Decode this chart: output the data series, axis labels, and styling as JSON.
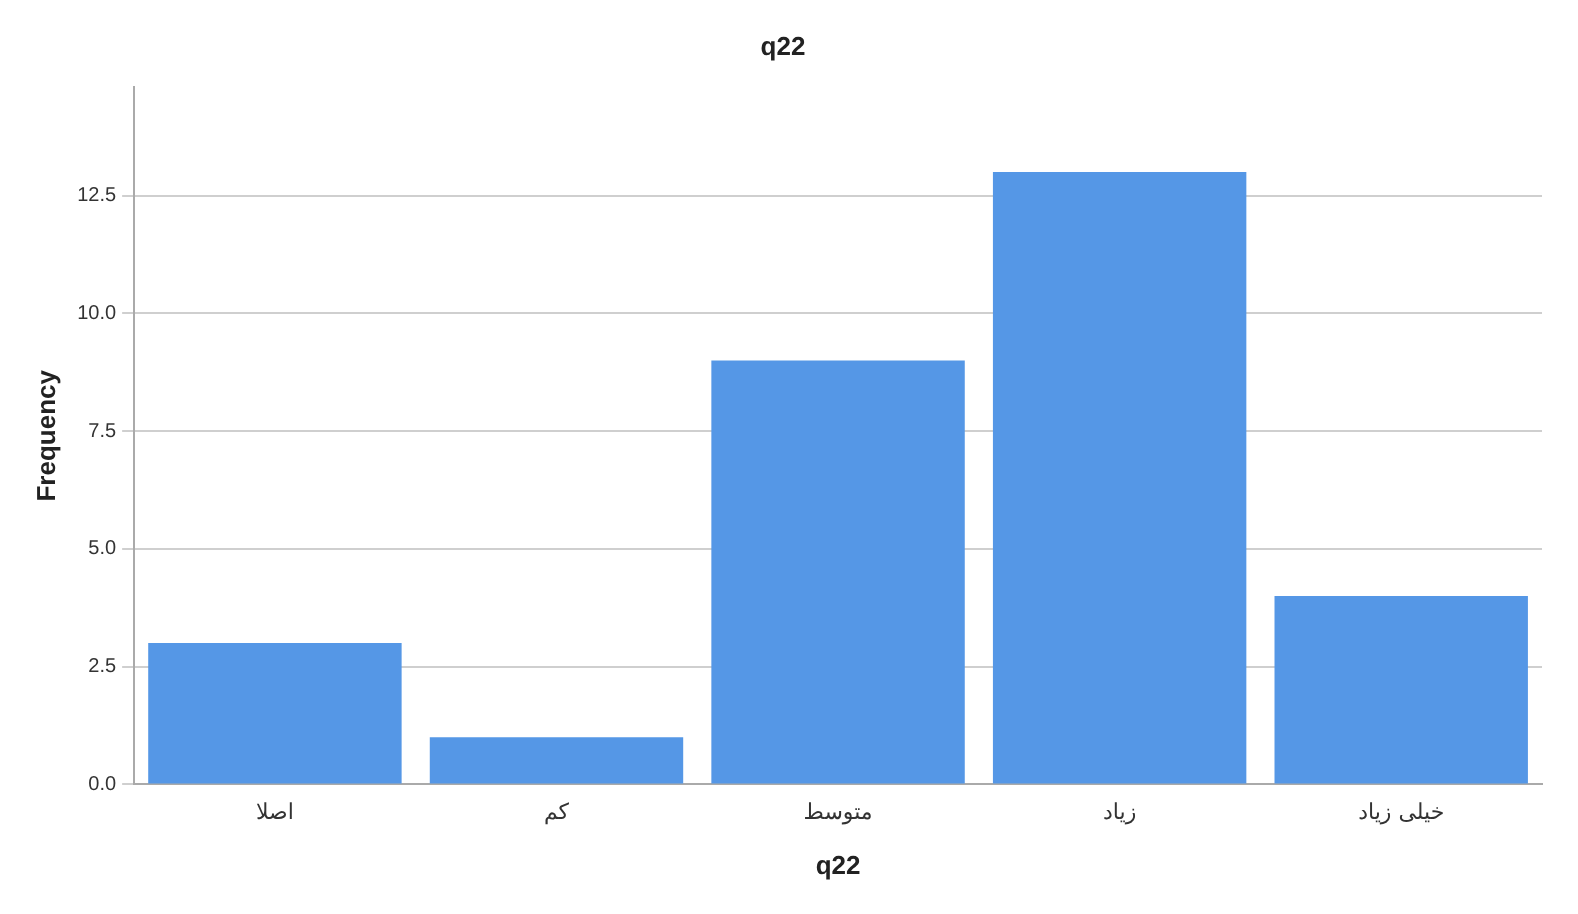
{
  "chart_data": {
    "type": "bar",
    "title": "q22",
    "xlabel": "q22",
    "ylabel": "Frequency",
    "categories": [
      "اصلا",
      "کم",
      "متوسط",
      "زیاد",
      "خیلی زیاد"
    ],
    "values": [
      3,
      1,
      9,
      13,
      4
    ],
    "color": "#5597e6",
    "ylim": [
      0,
      14.8
    ],
    "yticks": [
      {
        "value": 0,
        "label": "0.0"
      },
      {
        "value": 2.5,
        "label": "2.5"
      },
      {
        "value": 5,
        "label": "5.0"
      },
      {
        "value": 7.5,
        "label": "7.5"
      },
      {
        "value": 10,
        "label": "10.0"
      },
      {
        "value": 12.5,
        "label": "12.5"
      }
    ],
    "grid": "y"
  }
}
